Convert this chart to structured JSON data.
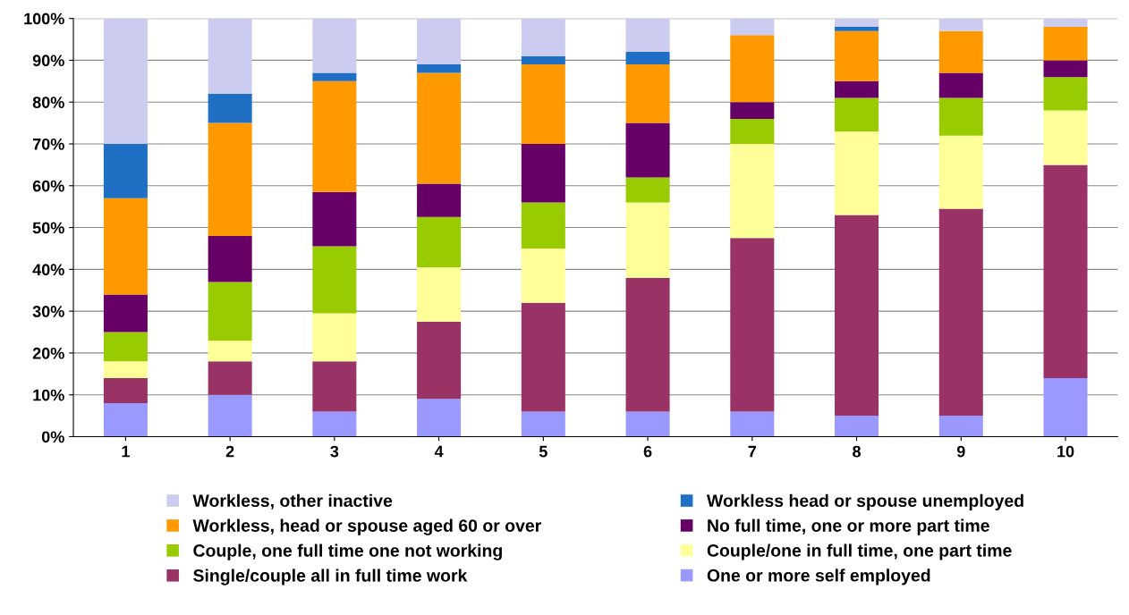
{
  "chart_data": {
    "type": "bar",
    "stacked": true,
    "categories": [
      "1",
      "2",
      "3",
      "4",
      "5",
      "6",
      "7",
      "8",
      "9",
      "10"
    ],
    "series": [
      {
        "name": "One or more self employed",
        "color": "#9999ff",
        "values": [
          8,
          10,
          6,
          9,
          6,
          6,
          6,
          5,
          5,
          14
        ]
      },
      {
        "name": "Single/couple all in full time work",
        "color": "#993366",
        "values": [
          6,
          8,
          12,
          18.5,
          26,
          32,
          41.5,
          48,
          49.5,
          51
        ]
      },
      {
        "name": "Couple/one in full time, one part time",
        "color": "#ffff99",
        "values": [
          4,
          5,
          11.5,
          13,
          13,
          18,
          22.5,
          20,
          17.5,
          13
        ]
      },
      {
        "name": "Couple, one full time one not working",
        "color": "#99cc00",
        "values": [
          7,
          14,
          16,
          12,
          11,
          6,
          6,
          8,
          9,
          8
        ]
      },
      {
        "name": "No full time, one or more part time",
        "color": "#660066",
        "values": [
          9,
          11,
          13,
          8,
          14,
          13,
          4,
          4,
          6,
          4
        ]
      },
      {
        "name": "Workless, head or spouse aged 60 or over",
        "color": "#ff9900",
        "values": [
          23,
          27,
          26.5,
          26.5,
          19,
          14,
          16,
          12,
          10,
          8
        ]
      },
      {
        "name": "Workless head or spouse unemployed",
        "color": "#1f6fc4",
        "values": [
          13,
          7,
          2,
          2,
          2,
          3,
          0,
          1,
          0,
          0
        ]
      },
      {
        "name": "Workless, other inactive",
        "color": "#ccccf0",
        "values": [
          30,
          18,
          13,
          11,
          9,
          8,
          4,
          2,
          3,
          2
        ]
      }
    ],
    "ylim": [
      0,
      100
    ],
    "yticks": [
      {
        "value": 0,
        "label": "0%"
      },
      {
        "value": 10,
        "label": "10%"
      },
      {
        "value": 20,
        "label": "20%"
      },
      {
        "value": 30,
        "label": "30%"
      },
      {
        "value": 40,
        "label": "40%"
      },
      {
        "value": 50,
        "label": "50%"
      },
      {
        "value": 60,
        "label": "60%"
      },
      {
        "value": 70,
        "label": "70%"
      },
      {
        "value": 80,
        "label": "80%"
      },
      {
        "value": 90,
        "label": "90%"
      },
      {
        "value": 100,
        "label": "100%"
      }
    ],
    "grid": "y",
    "legend": "bottom"
  }
}
